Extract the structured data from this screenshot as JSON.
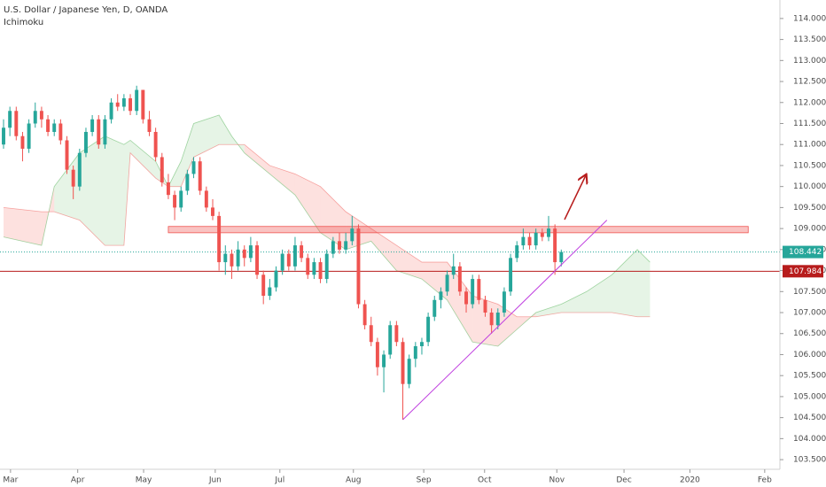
{
  "chart_data": {
    "type": "candlestick",
    "title": "U.S. Dollar / Japanese Yen, D, OANDA",
    "subtitle": "Ichimoku",
    "up_color": "#26a69a",
    "down_color": "#ef5350",
    "candles": [
      [
        111.0,
        111.6,
        110.9,
        111.4
      ],
      [
        111.4,
        111.9,
        111.2,
        111.8
      ],
      [
        111.8,
        111.9,
        111.1,
        111.2
      ],
      [
        111.2,
        111.3,
        110.6,
        110.9
      ],
      [
        110.9,
        111.6,
        110.8,
        111.5
      ],
      [
        111.5,
        112.0,
        111.4,
        111.8
      ],
      [
        111.8,
        111.9,
        111.4,
        111.6
      ],
      [
        111.6,
        111.7,
        111.2,
        111.3
      ],
      [
        111.3,
        111.6,
        111.2,
        111.5
      ],
      [
        111.5,
        111.6,
        111.0,
        111.1
      ],
      [
        111.1,
        111.2,
        110.3,
        110.4
      ],
      [
        110.4,
        110.5,
        109.7,
        110.0
      ],
      [
        110.0,
        110.9,
        109.9,
        110.8
      ],
      [
        110.8,
        111.4,
        110.7,
        111.3
      ],
      [
        111.3,
        111.7,
        111.2,
        111.6
      ],
      [
        111.6,
        111.7,
        110.9,
        111.0
      ],
      [
        111.0,
        111.7,
        110.9,
        111.6
      ],
      [
        111.6,
        112.1,
        111.5,
        112.0
      ],
      [
        112.0,
        112.2,
        111.8,
        111.9
      ],
      [
        111.9,
        112.2,
        111.8,
        112.1
      ],
      [
        112.1,
        112.2,
        111.7,
        111.8
      ],
      [
        111.8,
        112.4,
        111.7,
        112.3
      ],
      [
        112.3,
        112.3,
        111.5,
        111.6
      ],
      [
        111.6,
        111.8,
        111.2,
        111.3
      ],
      [
        111.3,
        111.4,
        110.6,
        110.7
      ],
      [
        110.7,
        110.8,
        110.0,
        110.1
      ],
      [
        110.1,
        110.3,
        109.7,
        109.8
      ],
      [
        109.8,
        109.9,
        109.2,
        109.5
      ],
      [
        109.5,
        110.0,
        109.4,
        109.9
      ],
      [
        109.9,
        110.4,
        109.8,
        110.3
      ],
      [
        110.3,
        110.7,
        110.2,
        110.6
      ],
      [
        110.6,
        110.7,
        109.8,
        109.9
      ],
      [
        109.9,
        110.0,
        109.4,
        109.5
      ],
      [
        109.5,
        109.7,
        109.2,
        109.3
      ],
      [
        109.3,
        109.4,
        108.0,
        108.2
      ],
      [
        108.2,
        108.6,
        107.9,
        108.4
      ],
      [
        108.4,
        108.5,
        107.8,
        108.1
      ],
      [
        108.1,
        108.7,
        108.0,
        108.5
      ],
      [
        108.5,
        108.6,
        108.1,
        108.3
      ],
      [
        108.3,
        108.8,
        108.2,
        108.6
      ],
      [
        108.6,
        108.7,
        107.8,
        107.9
      ],
      [
        107.9,
        108.0,
        107.2,
        107.4
      ],
      [
        107.4,
        107.8,
        107.3,
        107.6
      ],
      [
        107.6,
        108.1,
        107.5,
        108.0
      ],
      [
        108.0,
        108.5,
        107.9,
        108.4
      ],
      [
        108.4,
        108.5,
        108.0,
        108.1
      ],
      [
        108.1,
        108.8,
        108.0,
        108.6
      ],
      [
        108.6,
        108.7,
        108.2,
        108.3
      ],
      [
        108.3,
        108.4,
        107.8,
        107.9
      ],
      [
        107.9,
        108.3,
        107.8,
        108.2
      ],
      [
        108.2,
        108.3,
        107.7,
        107.8
      ],
      [
        107.8,
        108.5,
        107.7,
        108.4
      ],
      [
        108.4,
        108.8,
        108.3,
        108.7
      ],
      [
        108.7,
        108.9,
        108.4,
        108.5
      ],
      [
        108.5,
        108.9,
        108.4,
        108.7
      ],
      [
        108.7,
        109.3,
        108.6,
        109.0
      ],
      [
        109.0,
        109.1,
        107.1,
        107.2
      ],
      [
        107.2,
        107.3,
        106.6,
        106.7
      ],
      [
        106.7,
        106.9,
        106.2,
        106.3
      ],
      [
        106.3,
        106.4,
        105.5,
        105.7
      ],
      [
        105.7,
        106.1,
        105.1,
        106.0
      ],
      [
        106.0,
        106.8,
        105.9,
        106.7
      ],
      [
        106.7,
        106.8,
        106.2,
        106.3
      ],
      [
        106.3,
        106.4,
        104.45,
        105.3
      ],
      [
        105.3,
        106.0,
        105.2,
        105.9
      ],
      [
        105.9,
        106.3,
        105.7,
        106.2
      ],
      [
        106.2,
        106.4,
        106.0,
        106.3
      ],
      [
        106.3,
        107.0,
        106.2,
        106.9
      ],
      [
        106.9,
        107.4,
        106.8,
        107.3
      ],
      [
        107.3,
        107.6,
        107.1,
        107.5
      ],
      [
        107.5,
        108.0,
        107.4,
        107.9
      ],
      [
        107.9,
        108.4,
        107.8,
        108.1
      ],
      [
        108.1,
        108.2,
        107.4,
        107.5
      ],
      [
        107.5,
        107.6,
        107.0,
        107.2
      ],
      [
        107.2,
        107.9,
        107.1,
        107.8
      ],
      [
        107.8,
        107.9,
        107.2,
        107.3
      ],
      [
        107.3,
        107.4,
        106.9,
        107.0
      ],
      [
        107.0,
        107.1,
        106.5,
        106.7
      ],
      [
        106.7,
        107.1,
        106.6,
        107.0
      ],
      [
        107.0,
        107.6,
        106.9,
        107.5
      ],
      [
        107.5,
        108.4,
        107.4,
        108.3
      ],
      [
        108.3,
        108.7,
        108.2,
        108.6
      ],
      [
        108.6,
        109.0,
        108.5,
        108.8
      ],
      [
        108.8,
        108.9,
        108.5,
        108.6
      ],
      [
        108.6,
        109.0,
        108.5,
        108.9
      ],
      [
        108.9,
        109.0,
        108.7,
        108.8
      ],
      [
        108.8,
        109.3,
        108.7,
        109.0
      ],
      [
        109.0,
        109.1,
        107.9,
        108.2
      ],
      [
        108.2,
        108.5,
        108.1,
        108.442
      ]
    ],
    "cloud": {
      "x": [
        0,
        6,
        8,
        12,
        16,
        19,
        20,
        24,
        26,
        28,
        30,
        34,
        36,
        38,
        42,
        46,
        50,
        54,
        58,
        62,
        66,
        70,
        74,
        78,
        81,
        84,
        88,
        92,
        96,
        100,
        102
      ],
      "span_a": [
        108.8,
        108.6,
        110.0,
        110.8,
        111.2,
        111.0,
        111.1,
        110.6,
        110.0,
        110.6,
        111.5,
        111.7,
        111.2,
        110.8,
        110.3,
        109.8,
        108.9,
        108.5,
        108.7,
        108.0,
        107.8,
        107.3,
        106.3,
        106.2,
        106.6,
        107.0,
        107.2,
        107.5,
        107.9,
        108.5,
        108.2
      ],
      "span_b": [
        109.5,
        109.4,
        109.4,
        109.2,
        108.6,
        108.6,
        110.8,
        110.2,
        110.0,
        110.0,
        110.7,
        111.0,
        111.0,
        111.0,
        110.5,
        110.3,
        110.0,
        109.4,
        109.0,
        108.6,
        108.2,
        108.2,
        107.4,
        107.2,
        106.9,
        106.9,
        107.0,
        107.0,
        107.0,
        106.9,
        106.9
      ]
    },
    "zone": {
      "x": [
        26,
        117.5
      ],
      "values": [
        108.9,
        109.05
      ]
    },
    "trendline": {
      "x": [
        63,
        95.2
      ],
      "values": [
        104.45,
        109.2
      ]
    },
    "support_price": 107.984,
    "last_price": 108.442,
    "xlim": [
      -0.56,
      122.5
    ],
    "xticks": [
      {
        "value": 1.1,
        "label": "Mar"
      },
      {
        "value": 11.7,
        "label": "Apr"
      },
      {
        "value": 22.1,
        "label": "May"
      },
      {
        "value": 33.4,
        "label": "Jun"
      },
      {
        "value": 43.6,
        "label": "Jul"
      },
      {
        "value": 55.2,
        "label": "Aug"
      },
      {
        "value": 66.3,
        "label": "Sep"
      },
      {
        "value": 75.9,
        "label": "Oct"
      },
      {
        "value": 87.3,
        "label": "Nov"
      },
      {
        "value": 97.9,
        "label": "Dec"
      },
      {
        "value": 108.3,
        "label": "2020"
      },
      {
        "value": 120.1,
        "label": "Feb"
      }
    ],
    "ylim": [
      103.27,
      114.44
    ],
    "yticks": [
      {
        "value": 103.5,
        "label": "103.500"
      },
      {
        "value": 104,
        "label": "104.000"
      },
      {
        "value": 104.5,
        "label": "104.500"
      },
      {
        "value": 105,
        "label": "105.000"
      },
      {
        "value": 105.5,
        "label": "105.500"
      },
      {
        "value": 106,
        "label": "106.000"
      },
      {
        "value": 106.5,
        "label": "106.500"
      },
      {
        "value": 107,
        "label": "107.000"
      },
      {
        "value": 107.5,
        "label": "107.500"
      },
      {
        "value": 108,
        "label": "108.000"
      },
      {
        "value": 108.5,
        "label": "108.500"
      },
      {
        "value": 109,
        "label": "109.000"
      },
      {
        "value": 109.5,
        "label": "109.500"
      },
      {
        "value": 110,
        "label": "110.000"
      },
      {
        "value": 110.5,
        "label": "110.500"
      },
      {
        "value": 111,
        "label": "111.000"
      },
      {
        "value": 111.5,
        "label": "111.500"
      },
      {
        "value": 112,
        "label": "112.000"
      },
      {
        "value": 112.5,
        "label": "112.500"
      },
      {
        "value": 113,
        "label": "113.000"
      },
      {
        "value": 113.5,
        "label": "113.500"
      },
      {
        "value": 114,
        "label": "114.000"
      }
    ]
  }
}
